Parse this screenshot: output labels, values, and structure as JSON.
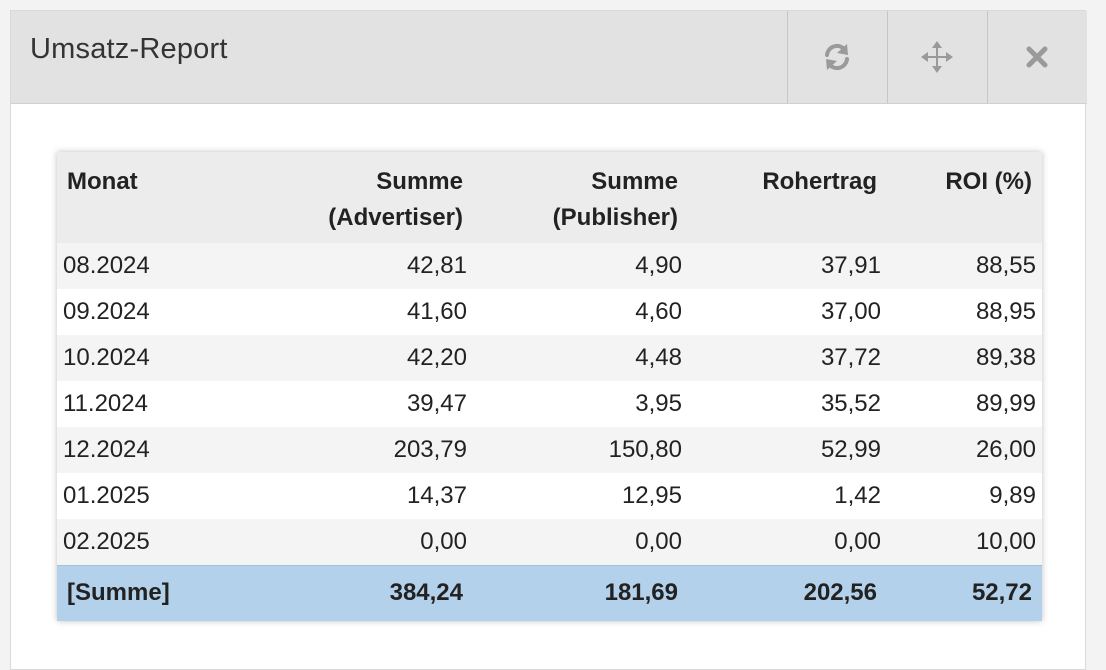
{
  "widget": {
    "title": "Umsatz-Report",
    "refresh_icon": "refresh-icon",
    "move_icon": "move-icon",
    "close_icon": "close-icon"
  },
  "table": {
    "headers": {
      "month": "Monat",
      "advertiser_line1": "Summe",
      "advertiser_line2": "(Advertiser)",
      "publisher_line1": "Summe",
      "publisher_line2": "(Publisher)",
      "gross_profit": "Rohertrag",
      "roi": "ROI (%)"
    },
    "rows": [
      {
        "month": "08.2024",
        "advertiser": "42,81",
        "publisher": "4,90",
        "gross_profit": "37,91",
        "roi": "88,55"
      },
      {
        "month": "09.2024",
        "advertiser": "41,60",
        "publisher": "4,60",
        "gross_profit": "37,00",
        "roi": "88,95"
      },
      {
        "month": "10.2024",
        "advertiser": "42,20",
        "publisher": "4,48",
        "gross_profit": "37,72",
        "roi": "89,38"
      },
      {
        "month": "11.2024",
        "advertiser": "39,47",
        "publisher": "3,95",
        "gross_profit": "35,52",
        "roi": "89,99"
      },
      {
        "month": "12.2024",
        "advertiser": "203,79",
        "publisher": "150,80",
        "gross_profit": "52,99",
        "roi": "26,00"
      },
      {
        "month": "01.2025",
        "advertiser": "14,37",
        "publisher": "12,95",
        "gross_profit": "1,42",
        "roi": "9,89"
      },
      {
        "month": "02.2025",
        "advertiser": "0,00",
        "publisher": "0,00",
        "gross_profit": "0,00",
        "roi": "10,00"
      }
    ],
    "total": {
      "label": "[Summe]",
      "advertiser": "384,24",
      "publisher": "181,69",
      "gross_profit": "202,56",
      "roi": "52,72"
    }
  },
  "colors": {
    "header_bg": "#e2e2e2",
    "total_row_bg": "#b3d1ea",
    "icon_color": "#9a9a9a"
  }
}
